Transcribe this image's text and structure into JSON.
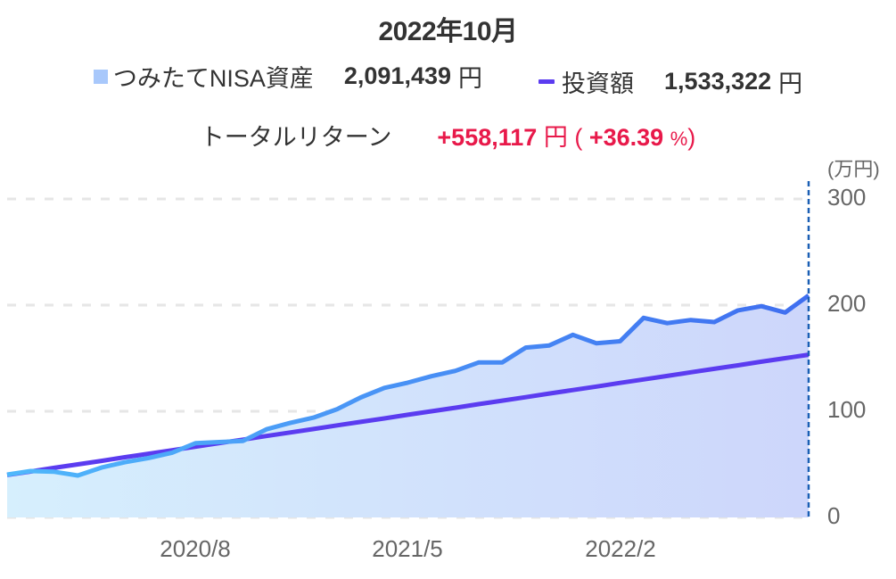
{
  "header": {
    "title": "2022年10月"
  },
  "legend": {
    "assets": {
      "label": "つみたてNISA資産",
      "value": "2,091,439",
      "unit": "円",
      "color": "#a8c8fb",
      "line_color": "#3f7ef0"
    },
    "investment": {
      "label": "投資額",
      "value": "1,533,322",
      "unit": "円",
      "color": "#5b3cf0"
    }
  },
  "total_return": {
    "label": "トータルリターン",
    "amount": "+558,117",
    "unit": "円",
    "open_paren": "(",
    "percent": "+36.39",
    "percent_sign": "%",
    "close_paren": ")",
    "color": "#e8194a"
  },
  "axes": {
    "y_unit": "(万円)",
    "y_ticks": [
      "300",
      "200",
      "100",
      "0"
    ],
    "x_ticks": [
      "2020/8",
      "2021/5",
      "2022/2"
    ]
  },
  "chart_data": {
    "type": "line",
    "title": "2022年10月",
    "xlabel": "",
    "ylabel": "(万円)",
    "ylim": [
      0,
      300
    ],
    "grid": true,
    "legend_position": "top",
    "x_tick_labels": [
      "2020/8",
      "2021/5",
      "2022/2"
    ],
    "x": [
      "2019/12",
      "2020/1",
      "2020/2",
      "2020/3",
      "2020/4",
      "2020/5",
      "2020/6",
      "2020/7",
      "2020/8",
      "2020/9",
      "2020/10",
      "2020/11",
      "2020/12",
      "2021/1",
      "2021/2",
      "2021/3",
      "2021/4",
      "2021/5",
      "2021/6",
      "2021/7",
      "2021/8",
      "2021/9",
      "2021/10",
      "2021/11",
      "2021/12",
      "2022/1",
      "2022/2",
      "2022/3",
      "2022/4",
      "2022/5",
      "2022/6",
      "2022/7",
      "2022/8",
      "2022/9",
      "2022/10"
    ],
    "series": [
      {
        "name": "つみたてNISA資産",
        "style": "area",
        "values": [
          40.3,
          43.7,
          43,
          39.5,
          47,
          52,
          56,
          61,
          70,
          71,
          72,
          83,
          89,
          94,
          102,
          113,
          122,
          127,
          133,
          138,
          146,
          146,
          160,
          162,
          172,
          164,
          166,
          188,
          183,
          186,
          184,
          195,
          199,
          193,
          209.1
        ]
      },
      {
        "name": "投資額",
        "style": "line",
        "values": [
          40,
          43.3,
          46.7,
          50,
          53.3,
          56.7,
          60,
          63.3,
          66.7,
          70,
          73.3,
          76.7,
          80,
          83.3,
          86.7,
          90,
          93.3,
          96.7,
          100,
          103.3,
          106.7,
          110,
          113.3,
          116.7,
          120,
          123.3,
          126.7,
          130,
          133.3,
          136.7,
          140,
          143.3,
          146.7,
          150,
          153.3
        ]
      }
    ],
    "annotations": [
      "トータルリターン +558,117 円 (+36.39 %)",
      "2,091,439 円",
      "1,533,322 円"
    ]
  }
}
